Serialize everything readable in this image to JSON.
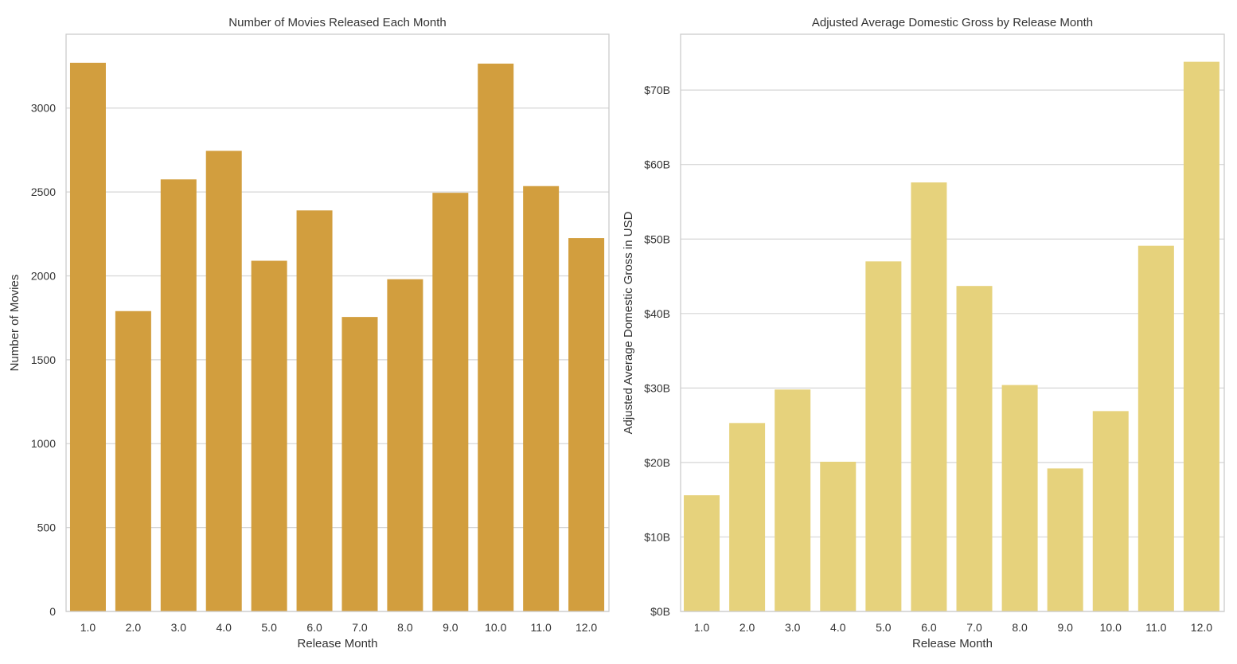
{
  "chart_data": [
    {
      "type": "bar",
      "title": "Number of Movies Released Each Month",
      "xlabel": "Release Month",
      "ylabel": "Number of Movies",
      "categories": [
        "1.0",
        "2.0",
        "3.0",
        "4.0",
        "5.0",
        "6.0",
        "7.0",
        "8.0",
        "9.0",
        "10.0",
        "11.0",
        "12.0"
      ],
      "values": [
        3270,
        1790,
        2575,
        2745,
        2090,
        2390,
        1755,
        1980,
        2495,
        3265,
        2535,
        2225
      ],
      "ylim": [
        0,
        3440
      ],
      "yticks": [
        0,
        500,
        1000,
        1500,
        2000,
        2500,
        3000
      ],
      "ytick_labels": [
        "0",
        "500",
        "1000",
        "1500",
        "2000",
        "2500",
        "3000"
      ],
      "bar_color": "#d29e3e",
      "grid": "horizontal"
    },
    {
      "type": "bar",
      "title": "Adjusted Average Domestic Gross by Release Month",
      "xlabel": "Release Month",
      "ylabel": "Adjusted Average Domestic Gross in USD",
      "categories": [
        "1.0",
        "2.0",
        "3.0",
        "4.0",
        "5.0",
        "6.0",
        "7.0",
        "8.0",
        "9.0",
        "10.0",
        "11.0",
        "12.0"
      ],
      "values": [
        15.6,
        25.3,
        29.8,
        20.1,
        47.0,
        57.6,
        43.7,
        30.4,
        19.2,
        26.9,
        49.1,
        73.8
      ],
      "ylim": [
        0,
        77.5
      ],
      "yticks": [
        0,
        10,
        20,
        30,
        40,
        50,
        60,
        70
      ],
      "ytick_labels": [
        "$0B",
        "$10B",
        "$20B",
        "$30B",
        "$40B",
        "$50B",
        "$60B",
        "$70B"
      ],
      "bar_color": "#e6d27c",
      "grid": "horizontal"
    }
  ]
}
